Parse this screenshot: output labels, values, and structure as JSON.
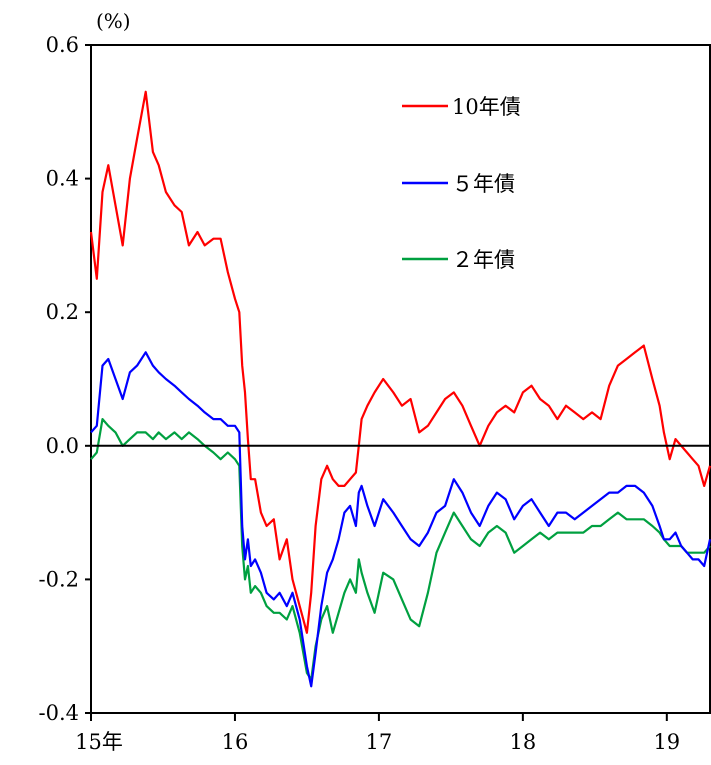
{
  "chart_data": {
    "type": "line",
    "unit_label": "(%)",
    "ylim": [
      -0.4,
      0.6
    ],
    "y_ticks": [
      "0.6",
      "0.4",
      "0.2",
      "0.0",
      "-0.2",
      "-0.4"
    ],
    "y_tick_values": [
      0.6,
      0.4,
      0.2,
      0.0,
      -0.2,
      -0.4
    ],
    "xlim": [
      2015.0,
      2019.3
    ],
    "x_ticks": [
      "15年",
      "16",
      "17",
      "18",
      "19"
    ],
    "x_tick_values": [
      2015,
      2016,
      2017,
      2018,
      2019
    ],
    "grid": false,
    "zero_line": true,
    "legend_position": "top-right",
    "series": [
      {
        "name": "10年債",
        "color": "#ff0000",
        "x": [
          2015.0,
          2015.04,
          2015.08,
          2015.12,
          2015.17,
          2015.22,
          2015.27,
          2015.32,
          2015.38,
          2015.43,
          2015.47,
          2015.52,
          2015.58,
          2015.63,
          2015.68,
          2015.74,
          2015.79,
          2015.85,
          2015.9,
          2015.95,
          2016.0,
          2016.03,
          2016.05,
          2016.07,
          2016.09,
          2016.11,
          2016.14,
          2016.18,
          2016.22,
          2016.27,
          2016.31,
          2016.36,
          2016.4,
          2016.45,
          2016.5,
          2016.53,
          2016.56,
          2016.6,
          2016.64,
          2016.68,
          2016.72,
          2016.76,
          2016.8,
          2016.84,
          2016.86,
          2016.88,
          2016.92,
          2016.97,
          2017.03,
          2017.1,
          2017.16,
          2017.22,
          2017.28,
          2017.34,
          2017.4,
          2017.46,
          2017.52,
          2017.58,
          2017.64,
          2017.7,
          2017.76,
          2017.82,
          2017.88,
          2017.94,
          2018.0,
          2018.06,
          2018.12,
          2018.18,
          2018.24,
          2018.3,
          2018.36,
          2018.42,
          2018.48,
          2018.54,
          2018.6,
          2018.66,
          2018.72,
          2018.78,
          2018.84,
          2018.9,
          2018.95,
          2018.98,
          2019.02,
          2019.06,
          2019.1,
          2019.14,
          2019.18,
          2019.22,
          2019.26,
          2019.3
        ],
        "values": [
          0.32,
          0.25,
          0.38,
          0.42,
          0.36,
          0.3,
          0.4,
          0.46,
          0.53,
          0.44,
          0.42,
          0.38,
          0.36,
          0.35,
          0.3,
          0.32,
          0.3,
          0.31,
          0.31,
          0.26,
          0.22,
          0.2,
          0.12,
          0.08,
          0.01,
          -0.05,
          -0.05,
          -0.1,
          -0.12,
          -0.11,
          -0.17,
          -0.14,
          -0.2,
          -0.24,
          -0.28,
          -0.22,
          -0.12,
          -0.05,
          -0.03,
          -0.05,
          -0.06,
          -0.06,
          -0.05,
          -0.04,
          0.0,
          0.04,
          0.06,
          0.08,
          0.1,
          0.08,
          0.06,
          0.07,
          0.02,
          0.03,
          0.05,
          0.07,
          0.08,
          0.06,
          0.03,
          0.0,
          0.03,
          0.05,
          0.06,
          0.05,
          0.08,
          0.09,
          0.07,
          0.06,
          0.04,
          0.06,
          0.05,
          0.04,
          0.05,
          0.04,
          0.09,
          0.12,
          0.13,
          0.14,
          0.15,
          0.1,
          0.06,
          0.02,
          -0.02,
          0.01,
          0.0,
          -0.01,
          -0.02,
          -0.03,
          -0.06,
          -0.03
        ]
      },
      {
        "name": "５年債",
        "color": "#0000ff",
        "x": [
          2015.0,
          2015.04,
          2015.08,
          2015.12,
          2015.17,
          2015.22,
          2015.27,
          2015.32,
          2015.38,
          2015.43,
          2015.47,
          2015.52,
          2015.58,
          2015.63,
          2015.68,
          2015.74,
          2015.79,
          2015.85,
          2015.9,
          2015.95,
          2016.0,
          2016.03,
          2016.05,
          2016.07,
          2016.09,
          2016.11,
          2016.14,
          2016.18,
          2016.22,
          2016.27,
          2016.31,
          2016.36,
          2016.4,
          2016.45,
          2016.5,
          2016.53,
          2016.56,
          2016.6,
          2016.64,
          2016.68,
          2016.72,
          2016.76,
          2016.8,
          2016.84,
          2016.86,
          2016.88,
          2016.92,
          2016.97,
          2017.03,
          2017.1,
          2017.16,
          2017.22,
          2017.28,
          2017.34,
          2017.4,
          2017.46,
          2017.52,
          2017.58,
          2017.64,
          2017.7,
          2017.76,
          2017.82,
          2017.88,
          2017.94,
          2018.0,
          2018.06,
          2018.12,
          2018.18,
          2018.24,
          2018.3,
          2018.36,
          2018.42,
          2018.48,
          2018.54,
          2018.6,
          2018.66,
          2018.72,
          2018.78,
          2018.84,
          2018.9,
          2018.95,
          2018.98,
          2019.02,
          2019.06,
          2019.1,
          2019.14,
          2019.18,
          2019.22,
          2019.26,
          2019.3
        ],
        "values": [
          0.02,
          0.03,
          0.12,
          0.13,
          0.1,
          0.07,
          0.11,
          0.12,
          0.14,
          0.12,
          0.11,
          0.1,
          0.09,
          0.08,
          0.07,
          0.06,
          0.05,
          0.04,
          0.04,
          0.03,
          0.03,
          0.02,
          -0.12,
          -0.17,
          -0.14,
          -0.18,
          -0.17,
          -0.19,
          -0.22,
          -0.23,
          -0.22,
          -0.24,
          -0.22,
          -0.26,
          -0.33,
          -0.36,
          -0.31,
          -0.24,
          -0.19,
          -0.17,
          -0.14,
          -0.1,
          -0.09,
          -0.12,
          -0.07,
          -0.06,
          -0.09,
          -0.12,
          -0.08,
          -0.1,
          -0.12,
          -0.14,
          -0.15,
          -0.13,
          -0.1,
          -0.09,
          -0.05,
          -0.07,
          -0.1,
          -0.12,
          -0.09,
          -0.07,
          -0.08,
          -0.11,
          -0.09,
          -0.08,
          -0.1,
          -0.12,
          -0.1,
          -0.1,
          -0.11,
          -0.1,
          -0.09,
          -0.08,
          -0.07,
          -0.07,
          -0.06,
          -0.06,
          -0.07,
          -0.09,
          -0.12,
          -0.14,
          -0.14,
          -0.13,
          -0.15,
          -0.16,
          -0.17,
          -0.17,
          -0.18,
          -0.14
        ]
      },
      {
        "name": "２年債",
        "color": "#00a040",
        "x": [
          2015.0,
          2015.04,
          2015.08,
          2015.12,
          2015.17,
          2015.22,
          2015.27,
          2015.32,
          2015.38,
          2015.43,
          2015.47,
          2015.52,
          2015.58,
          2015.63,
          2015.68,
          2015.74,
          2015.79,
          2015.85,
          2015.9,
          2015.95,
          2016.0,
          2016.03,
          2016.05,
          2016.07,
          2016.09,
          2016.11,
          2016.14,
          2016.18,
          2016.22,
          2016.27,
          2016.31,
          2016.36,
          2016.4,
          2016.45,
          2016.5,
          2016.53,
          2016.56,
          2016.6,
          2016.64,
          2016.68,
          2016.72,
          2016.76,
          2016.8,
          2016.84,
          2016.86,
          2016.88,
          2016.92,
          2016.97,
          2017.03,
          2017.1,
          2017.16,
          2017.22,
          2017.28,
          2017.34,
          2017.4,
          2017.46,
          2017.52,
          2017.58,
          2017.64,
          2017.7,
          2017.76,
          2017.82,
          2017.88,
          2017.94,
          2018.0,
          2018.06,
          2018.12,
          2018.18,
          2018.24,
          2018.3,
          2018.36,
          2018.42,
          2018.48,
          2018.54,
          2018.6,
          2018.66,
          2018.72,
          2018.78,
          2018.84,
          2018.9,
          2018.95,
          2018.98,
          2019.02,
          2019.06,
          2019.1,
          2019.14,
          2019.18,
          2019.22,
          2019.26,
          2019.3
        ],
        "values": [
          -0.02,
          -0.01,
          0.04,
          0.03,
          0.02,
          0.0,
          0.01,
          0.02,
          0.02,
          0.01,
          0.02,
          0.01,
          0.02,
          0.01,
          0.02,
          0.01,
          0.0,
          -0.01,
          -0.02,
          -0.01,
          -0.02,
          -0.03,
          -0.15,
          -0.2,
          -0.18,
          -0.22,
          -0.21,
          -0.22,
          -0.24,
          -0.25,
          -0.25,
          -0.26,
          -0.24,
          -0.28,
          -0.34,
          -0.35,
          -0.3,
          -0.26,
          -0.24,
          -0.28,
          -0.25,
          -0.22,
          -0.2,
          -0.22,
          -0.17,
          -0.19,
          -0.22,
          -0.25,
          -0.19,
          -0.2,
          -0.23,
          -0.26,
          -0.27,
          -0.22,
          -0.16,
          -0.13,
          -0.1,
          -0.12,
          -0.14,
          -0.15,
          -0.13,
          -0.12,
          -0.13,
          -0.16,
          -0.15,
          -0.14,
          -0.13,
          -0.14,
          -0.13,
          -0.13,
          -0.13,
          -0.13,
          -0.12,
          -0.12,
          -0.11,
          -0.1,
          -0.11,
          -0.11,
          -0.11,
          -0.12,
          -0.13,
          -0.14,
          -0.15,
          -0.15,
          -0.15,
          -0.16,
          -0.16,
          -0.16,
          -0.16,
          -0.15
        ]
      }
    ]
  }
}
